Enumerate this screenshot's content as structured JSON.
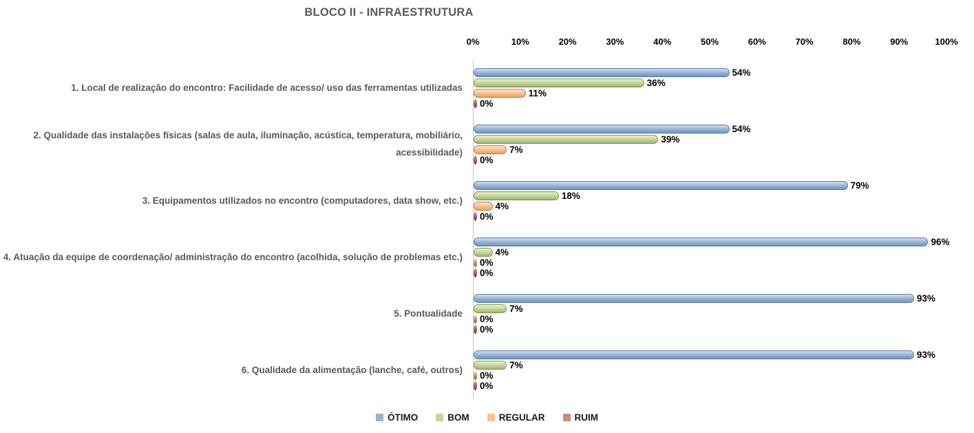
{
  "chart_data": {
    "type": "bar",
    "orientation": "horizontal",
    "title": "BLOCO II - INFRAESTRUTURA",
    "title_color": "#595959",
    "categories": [
      "1. Local de realização do encontro: Facilidade de acesso/ uso das ferramentas utilizadas",
      "2. Qualidade das instalações físicas (salas de aula, iluminação, acústica, temperatura, mobiliário, acessibilidade)",
      "3. Equipamentos utilizados no encontro (computadores, data show, etc.)",
      "4. Atuação da equipe de coordenação/ administração do encontro (acolhida, solução de problemas etc.)",
      "5. Pontualidade",
      "6. Qualidade da alimentação (lanche, café, outros)"
    ],
    "series": [
      {
        "name": "ÓTIMO",
        "values": [
          54,
          54,
          79,
          96,
          93,
          93
        ],
        "labels": [
          "54%",
          "54%",
          "79%",
          "96%",
          "93%",
          "93%"
        ],
        "colors": {
          "light": "#C8D8EB",
          "fill": "#95B3D7",
          "dark": "#7295BE",
          "border": "#5D7BA0",
          "cap": "#6E92BC",
          "swatch": "#95B3D7"
        }
      },
      {
        "name": "BOM",
        "values": [
          36,
          39,
          18,
          4,
          7,
          7
        ],
        "labels": [
          "36%",
          "39%",
          "18%",
          "4%",
          "7%",
          "7%"
        ],
        "colors": {
          "light": "#E0EBC6",
          "fill": "#C3D69B",
          "dark": "#9DB56F",
          "border": "#82994E",
          "cap": "#9DB56F",
          "swatch": "#C3D69B"
        }
      },
      {
        "name": "REGULAR",
        "values": [
          11,
          7,
          4,
          0,
          0,
          0
        ],
        "labels": [
          "11%",
          "7%",
          "4%",
          "0%",
          "0%",
          "0%"
        ],
        "colors": {
          "light": "#FCDCBD",
          "fill": "#FAC090",
          "dark": "#E3A467",
          "border": "#B97B56",
          "cap": "#A96A3F",
          "swatch": "#FAC090"
        }
      },
      {
        "name": "RUIM",
        "values": [
          0,
          0,
          0,
          0,
          0,
          0
        ],
        "labels": [
          "0%",
          "0%",
          "0%",
          "0%",
          "0%",
          "0%"
        ],
        "colors": {
          "light": "#C79792",
          "fill": "#D99694",
          "dark": "#8E443D",
          "border": "#7C3A34",
          "cap": "#8E443D",
          "swatch": "#D08784"
        }
      }
    ],
    "x_axis": {
      "position": "top",
      "min": 0,
      "max": 100,
      "ticks": [
        "0%",
        "10%",
        "20%",
        "30%",
        "40%",
        "50%",
        "60%",
        "70%",
        "80%",
        "90%",
        "100%"
      ]
    },
    "grid": false,
    "legend_position": "bottom",
    "data_labels": true,
    "axis_line_color": "#C6C6C6"
  }
}
